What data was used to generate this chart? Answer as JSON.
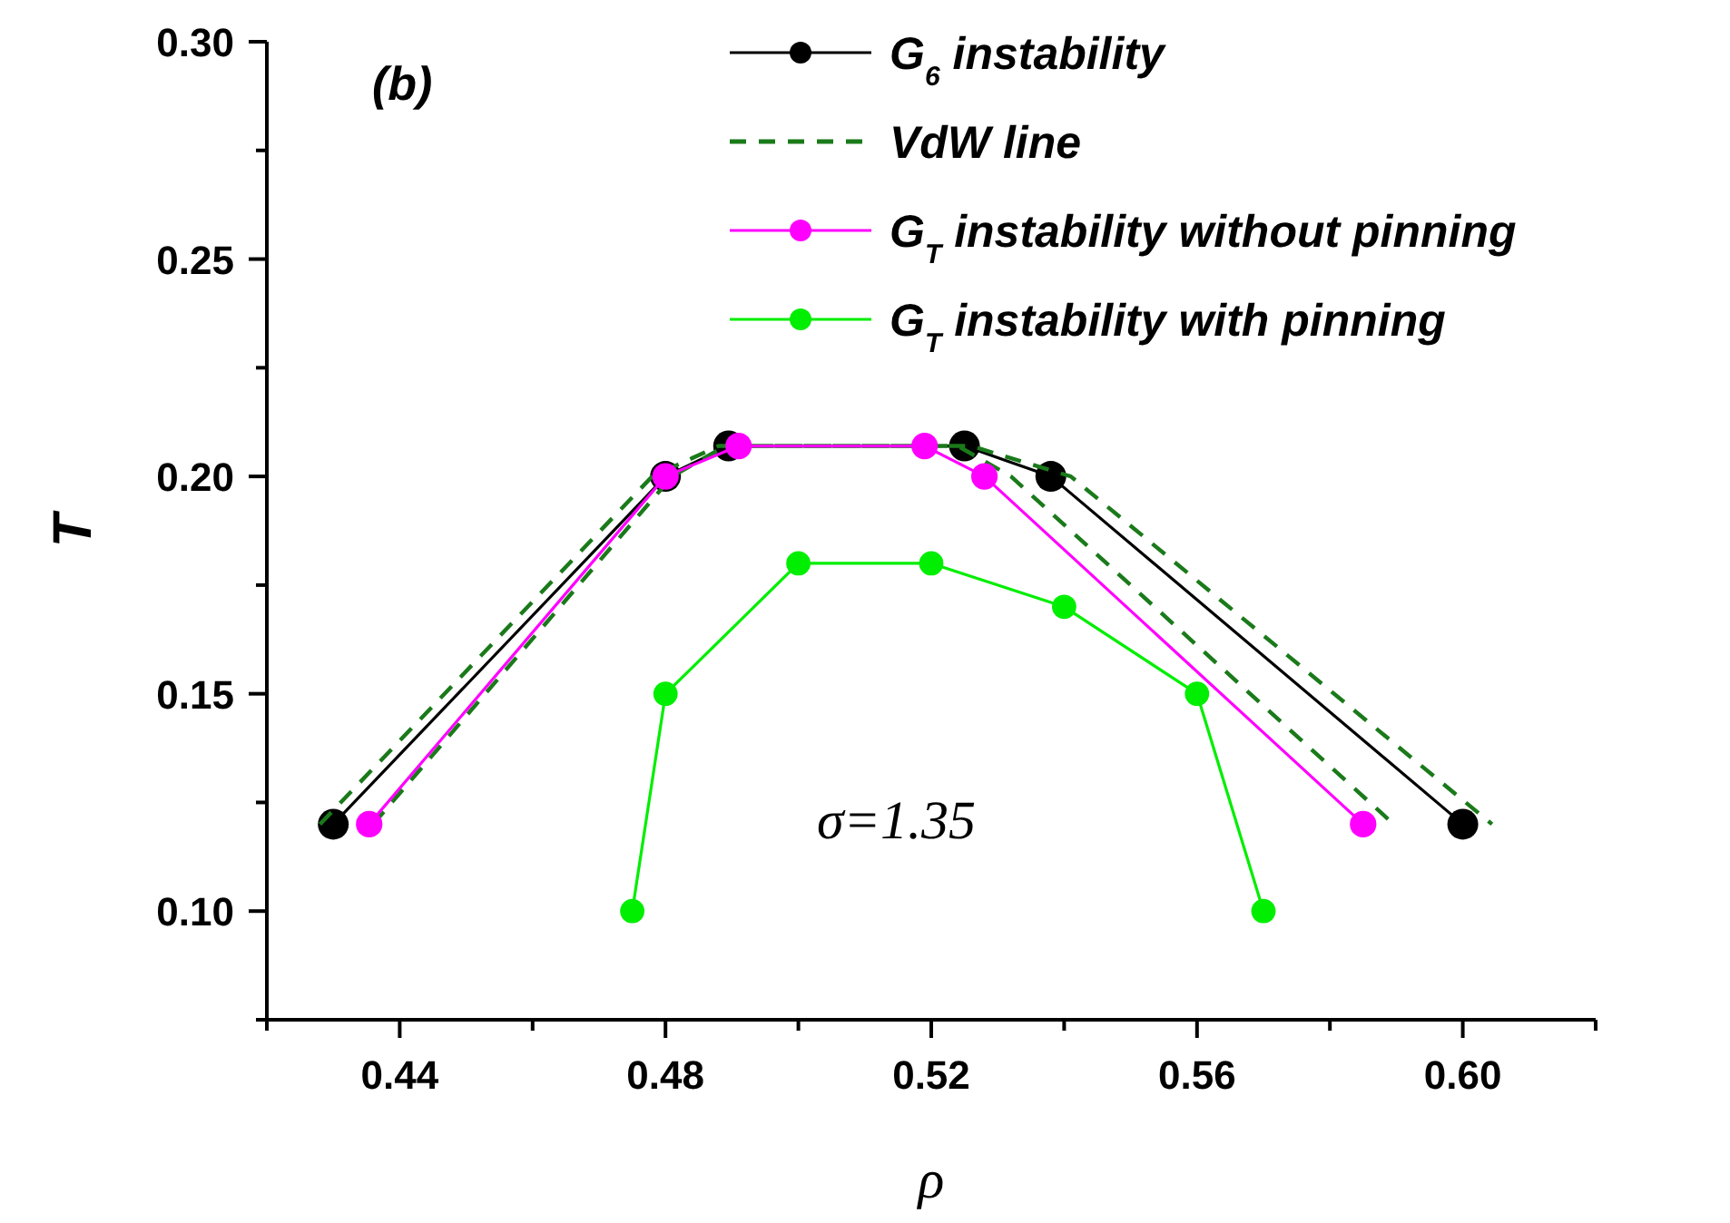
{
  "chart_data": {
    "type": "line",
    "xlabel": "ρ",
    "ylabel": "T",
    "xlim": [
      0.42,
      0.62
    ],
    "xticks": [
      {
        "value": 0.42,
        "label": null
      },
      0.44,
      {
        "value": 0.46,
        "label": null
      },
      0.48,
      {
        "value": 0.5,
        "label": null
      },
      0.52,
      {
        "value": 0.54,
        "label": null
      },
      0.56,
      {
        "value": 0.58,
        "label": null
      },
      {
        "value": 0.6,
        "label": "0.60"
      },
      {
        "value": 0.62,
        "label": null
      }
    ],
    "ylim": [
      0.075,
      0.3
    ],
    "yticks": [
      {
        "value": 0.075,
        "label": null
      },
      {
        "value": 0.1,
        "label": "0.10"
      },
      {
        "value": 0.125,
        "label": null
      },
      0.15,
      {
        "value": 0.175,
        "label": null
      },
      {
        "value": 0.2,
        "label": "0.20"
      },
      {
        "value": 0.225,
        "label": null
      },
      0.25,
      {
        "value": 0.275,
        "label": null
      },
      {
        "value": 0.3,
        "label": "0.30"
      }
    ],
    "grid": false,
    "legend": "top right",
    "annotations": [
      "(b)",
      "σ=1.35"
    ],
    "series": [
      {
        "name": "G$_{6}$ instability",
        "color": "#000000",
        "marker": "circle",
        "line_style": "solid",
        "x": [
          0.43,
          0.48,
          0.4895,
          0.525,
          0.538,
          0.6
        ],
        "values": [
          0.12,
          0.2,
          0.207,
          0.207,
          0.2,
          0.12
        ]
      },
      {
        "name": "VdW line",
        "color": "#1a7a1a",
        "marker": "none",
        "line_style": "dashed",
        "x": [
          0.428,
          0.478,
          0.488,
          0.526,
          0.541,
          0.6044,
          null,
          0.436,
          0.481,
          0.489,
          0.524,
          0.532,
          0.5896
        ],
        "values": [
          0.12,
          0.2,
          0.207,
          0.207,
          0.2,
          0.12,
          null,
          0.12,
          0.2,
          0.207,
          0.207,
          0.2,
          0.12
        ]
      },
      {
        "name": "G$_{T}$ instability without pinning",
        "color": "#ff00ff",
        "marker": "circle",
        "line_style": "solid",
        "x": [
          0.4354,
          0.48,
          0.491,
          0.519,
          0.528,
          0.585
        ],
        "values": [
          0.12,
          0.2,
          0.207,
          0.207,
          0.2,
          0.12
        ]
      },
      {
        "name": "G$_{T}$ instability with pinning",
        "color": "#00ee00",
        "marker": "circle",
        "line_style": "solid",
        "x": [
          0.475,
          0.48,
          0.5,
          0.52,
          0.54,
          0.56,
          0.57
        ],
        "values": [
          0.1,
          0.15,
          0.18,
          0.18,
          0.17,
          0.15,
          0.1
        ]
      }
    ]
  }
}
